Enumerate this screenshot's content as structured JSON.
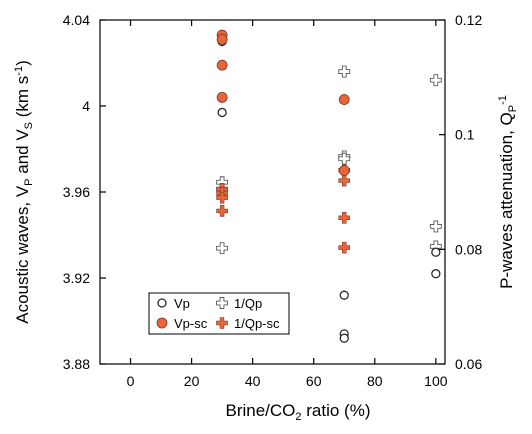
{
  "chart_data": {
    "type": "scatter",
    "xlabel": {
      "main": "Brine/CO",
      "sub": "2",
      "tail": " ratio (%)"
    },
    "ylabel_left": {
      "a": "Acoustic waves, V",
      "b": "P",
      "c": " and V",
      "d": "S",
      "e": " (km s",
      "f": "-1",
      "g": ")"
    },
    "ylabel_right": {
      "a": "P-waves attenuation, Q",
      "b": "P",
      "c": "-1"
    },
    "xlim": [
      -10,
      103
    ],
    "ylim_left": [
      3.88,
      4.04
    ],
    "ylim_right": [
      0.06,
      0.12
    ],
    "x_ticks": [
      "0",
      "20",
      "40",
      "60",
      "80",
      "100"
    ],
    "y_left_ticks": [
      "3.88",
      "3.92",
      "3.96",
      "4",
      "4.04"
    ],
    "y_right_ticks": [
      "0.06",
      "0.08",
      "0.1",
      "0.12"
    ],
    "series": [
      {
        "name": "Vp",
        "axis": "left",
        "marker": "open-circle",
        "points": [
          [
            30,
            3.997
          ],
          [
            30,
            4.03
          ],
          [
            30,
            4.032
          ],
          [
            30,
            4.033
          ],
          [
            70,
            3.912
          ],
          [
            70,
            3.894
          ],
          [
            70,
            3.892
          ],
          [
            100,
            3.932
          ],
          [
            100,
            3.922
          ]
        ]
      },
      {
        "name": "Vp-sc",
        "axis": "left",
        "marker": "filled-circle",
        "points": [
          [
            30,
            4.033
          ],
          [
            30,
            4.031
          ],
          [
            30,
            4.019
          ],
          [
            30,
            4.004
          ],
          [
            70,
            4.003
          ],
          [
            70,
            3.97
          ]
        ]
      },
      {
        "name": "1/Qp",
        "axis": "right",
        "marker": "open-plus",
        "points": [
          [
            30,
            0.0917
          ],
          [
            30,
            0.0905
          ],
          [
            30,
            0.0802
          ],
          [
            70,
            0.111
          ],
          [
            70,
            0.0962
          ],
          [
            70,
            0.0958
          ],
          [
            100,
            0.1095
          ],
          [
            100,
            0.084
          ],
          [
            100,
            0.0805
          ]
        ]
      },
      {
        "name": "1/Qp-sc",
        "axis": "right",
        "marker": "filled-plus",
        "points": [
          [
            30,
            0.0905
          ],
          [
            30,
            0.0898
          ],
          [
            30,
            0.089
          ],
          [
            30,
            0.0867
          ],
          [
            70,
            0.0938
          ],
          [
            70,
            0.092
          ],
          [
            70,
            0.0855
          ],
          [
            70,
            0.0803
          ]
        ]
      }
    ],
    "legend_position": "bottom-left",
    "colors": {
      "filled": "#e8643c",
      "stroke": "#2b2b2b",
      "open_fill": "#ffffff"
    }
  }
}
